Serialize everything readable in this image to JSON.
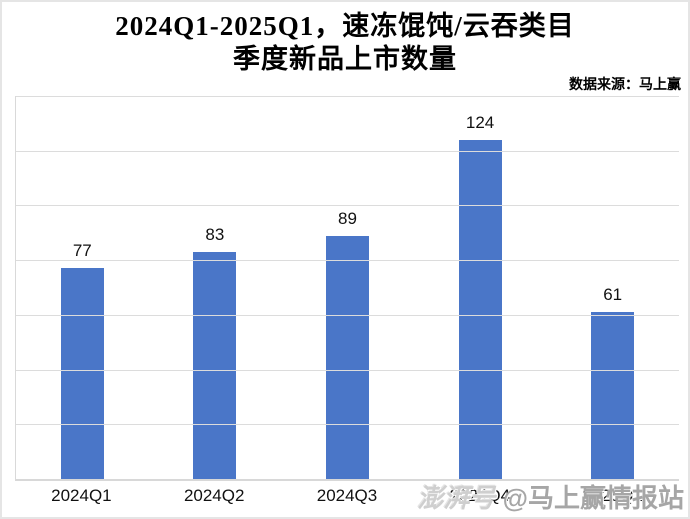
{
  "header": {
    "title_line1": "2024Q1-2025Q1，速冻馄饨/云吞类目",
    "title_line2": "季度新品上市数量",
    "source": "数据来源：马上赢"
  },
  "chart_data": {
    "type": "bar",
    "title": "2024Q1-2025Q1，速冻馄饨/云吞类目 季度新品上市数量",
    "categories": [
      "2024Q1",
      "2024Q2",
      "2024Q3",
      "2024Q4",
      "2025Q1"
    ],
    "values": [
      77,
      83,
      89,
      124,
      61
    ],
    "xlabel": "",
    "ylabel": "",
    "ylim": [
      0,
      140
    ],
    "grid_step": 20,
    "grid": true,
    "legend": false,
    "y_tick_labels_visible": false,
    "bar_color": "#4a76c8",
    "gridline_color": "#dcdcdc"
  },
  "watermark": {
    "brand": "澎湃号",
    "handle": "@马上赢情报站"
  }
}
